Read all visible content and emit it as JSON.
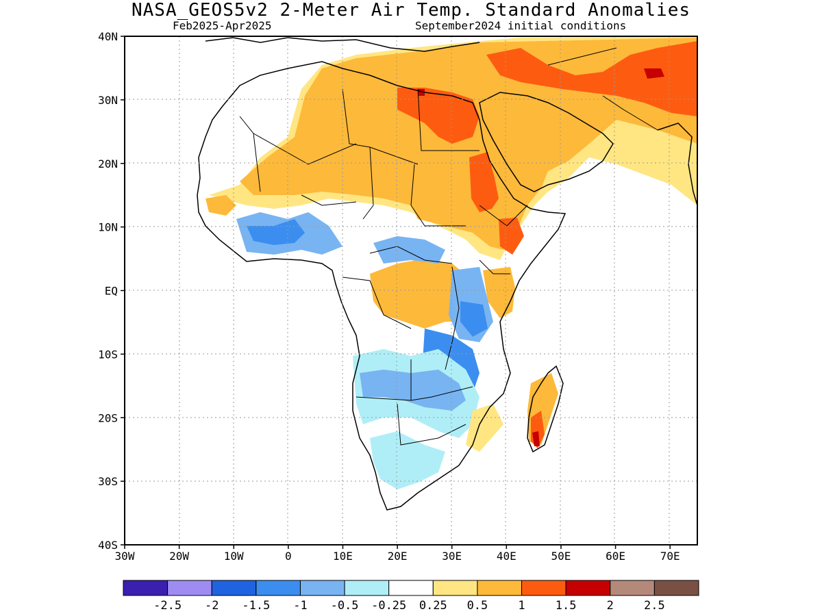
{
  "header": {
    "title": "NASA_GEOS5v2 2-Meter Air Temp. Standard Anomalies",
    "period": "Feb2025-Apr2025",
    "init": "September2024 initial conditions"
  },
  "axes": {
    "lat_labels": [
      "40N",
      "30N",
      "20N",
      "10N",
      "EQ",
      "10S",
      "20S",
      "30S",
      "40S"
    ],
    "lon_labels": [
      "30W",
      "20W",
      "10W",
      "0",
      "10E",
      "20E",
      "30E",
      "40E",
      "50E",
      "60E",
      "70E"
    ]
  },
  "colorbar": {
    "colors": [
      "#3a1fb0",
      "#9e8cf2",
      "#1f63e0",
      "#3b8ef0",
      "#78b4f2",
      "#b0eef7",
      "#ffffff",
      "#ffe682",
      "#fdb93a",
      "#fd5c10",
      "#c60000",
      "#b5897a",
      "#7a5045"
    ],
    "labels": [
      "-2.5",
      "-2",
      "-1.5",
      "-1",
      "-0.5",
      "-0.25",
      "0.25",
      "0.5",
      "1",
      "1.5",
      "2",
      "2.5"
    ]
  },
  "legend_meaning": {
    "warm_moderate": "#fdb93a",
    "warm_strong": "#fd5c10",
    "warm_extreme": "#c60000",
    "cool_light": "#b0eef7",
    "cool_moderate": "#78b4f2",
    "cool_strong": "#3b8ef0"
  }
}
